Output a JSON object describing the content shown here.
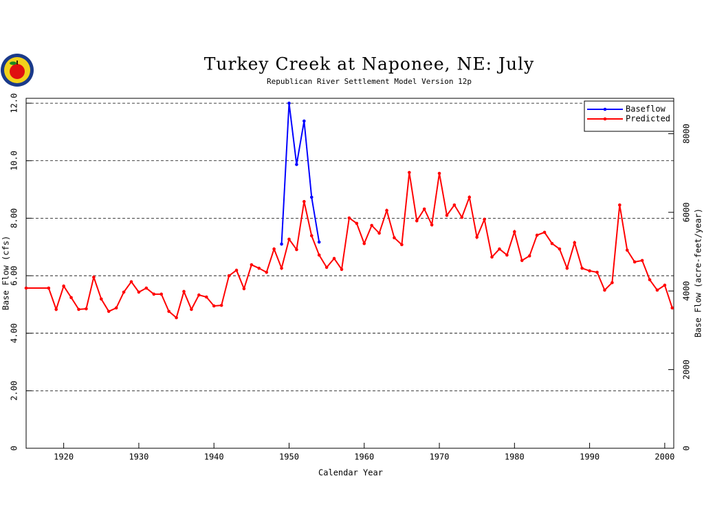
{
  "chart_data": {
    "type": "line",
    "title": "Turkey Creek at Naponee, NE: July",
    "subtitle": "Republican River Settlement Model Version 12p",
    "xlabel": "Calendar Year",
    "ylabel": "Base Flow (cfs)",
    "y2label": "Base Flow (acre-feet/year)",
    "xlim": [
      1915,
      2001.2
    ],
    "xticks": [
      1920,
      1930,
      1940,
      1950,
      1960,
      1970,
      1980,
      1990,
      2000
    ],
    "ylim": [
      0,
      12.17
    ],
    "yticks": [
      0,
      {
        "value": 2,
        "label": "2.00"
      },
      {
        "value": 4,
        "label": "4.00"
      },
      {
        "value": 6,
        "label": "6.00"
      },
      {
        "value": 8,
        "label": "8.00"
      },
      {
        "value": 10,
        "label": "10.0"
      },
      {
        "value": 12,
        "label": "12.0"
      }
    ],
    "y2lim": [
      0,
      8900
    ],
    "y2ticks": [
      0,
      2000,
      4000,
      6000,
      8000
    ],
    "grid": true,
    "legend": "upper right",
    "series": [
      {
        "name": "Baseflow",
        "color": "#0000ff",
        "x": [
          1949,
          1950,
          1951,
          1952,
          1953,
          1954
        ],
        "values": [
          7.1,
          12.0,
          9.87,
          11.38,
          8.73,
          7.17
        ]
      },
      {
        "name": "Predicted",
        "color": "#ff0000",
        "x": [
          1915,
          1918,
          1919,
          1920,
          1921,
          1922,
          1923,
          1924,
          1925,
          1926,
          1927,
          1928,
          1929,
          1930,
          1931,
          1932,
          1933,
          1934,
          1935,
          1936,
          1937,
          1938,
          1939,
          1940,
          1941,
          1942,
          1943,
          1944,
          1945,
          1946,
          1947,
          1948,
          1949,
          1950,
          1951,
          1952,
          1953,
          1954,
          1955,
          1956,
          1957,
          1958,
          1959,
          1960,
          1961,
          1962,
          1963,
          1964,
          1965,
          1966,
          1967,
          1968,
          1969,
          1970,
          1971,
          1972,
          1973,
          1974,
          1975,
          1976,
          1977,
          1978,
          1979,
          1980,
          1981,
          1982,
          1983,
          1984,
          1985,
          1986,
          1987,
          1988,
          1989,
          1990,
          1991,
          1992,
          1993,
          1994,
          1995,
          1996,
          1997,
          1998,
          1999,
          2000,
          2001
        ],
        "values": [
          5.57,
          5.57,
          4.83,
          5.64,
          5.24,
          4.83,
          4.85,
          5.95,
          5.19,
          4.76,
          4.88,
          5.43,
          5.79,
          5.43,
          5.57,
          5.36,
          5.36,
          4.76,
          4.54,
          5.45,
          4.83,
          5.33,
          5.26,
          4.95,
          4.97,
          6.0,
          6.19,
          5.55,
          6.38,
          6.26,
          6.12,
          6.93,
          6.26,
          7.27,
          6.91,
          8.58,
          7.39,
          6.72,
          6.29,
          6.6,
          6.22,
          8.01,
          7.82,
          7.12,
          7.75,
          7.48,
          8.27,
          7.32,
          7.08,
          9.59,
          7.91,
          8.32,
          7.77,
          9.56,
          8.1,
          8.46,
          8.03,
          8.73,
          7.34,
          7.96,
          6.65,
          6.93,
          6.72,
          7.53,
          6.53,
          6.69,
          7.41,
          7.51,
          7.12,
          6.93,
          6.26,
          7.15,
          6.26,
          6.17,
          6.12,
          5.5,
          5.76,
          8.46,
          6.89,
          6.48,
          6.53,
          5.86,
          5.5,
          5.67,
          4.88
        ]
      }
    ]
  }
}
